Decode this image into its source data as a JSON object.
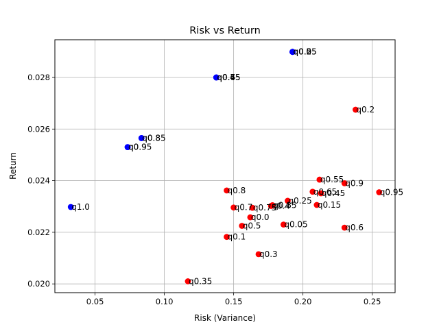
{
  "chart_data": {
    "type": "scatter",
    "title": "Risk vs Return",
    "xlabel": "Risk (Variance)",
    "ylabel": "Return",
    "xlim": [
      0.021,
      0.2665
    ],
    "ylim": [
      0.01966,
      0.02946
    ],
    "grid": true,
    "xticks": [
      0.05,
      0.1,
      0.15,
      0.2,
      0.25
    ],
    "xtick_labels": [
      "0.05",
      "0.10",
      "0.15",
      "0.20",
      "0.25"
    ],
    "yticks": [
      0.02,
      0.022,
      0.024,
      0.026,
      0.028
    ],
    "ytick_labels": [
      "0.020",
      "0.022",
      "0.024",
      "0.026",
      "0.028"
    ],
    "series": [
      {
        "name": "red",
        "color": "#ff0000",
        "points": [
          {
            "label": "q0.0",
            "x": 0.162,
            "y": 0.02258
          },
          {
            "label": "q0.05",
            "x": 0.186,
            "y": 0.0223
          },
          {
            "label": "q0.1",
            "x": 0.145,
            "y": 0.02182
          },
          {
            "label": "q0.15",
            "x": 0.21,
            "y": 0.02306
          },
          {
            "label": "q0.2",
            "x": 0.238,
            "y": 0.02675
          },
          {
            "label": "q0.25",
            "x": 0.189,
            "y": 0.02322
          },
          {
            "label": "q0.3",
            "x": 0.168,
            "y": 0.02115
          },
          {
            "label": "q0.35",
            "x": 0.117,
            "y": 0.0201
          },
          {
            "label": "q0.4",
            "x": 0.177,
            "y": 0.02302
          },
          {
            "label": "q0.45",
            "x": 0.213,
            "y": 0.02351
          },
          {
            "label": "q0.5",
            "x": 0.156,
            "y": 0.02225
          },
          {
            "label": "q0.55",
            "x": 0.212,
            "y": 0.02404
          },
          {
            "label": "q0.6",
            "x": 0.23,
            "y": 0.02218
          },
          {
            "label": "q0.65",
            "x": 0.207,
            "y": 0.02357
          },
          {
            "label": "q0.7",
            "x": 0.15,
            "y": 0.02296
          },
          {
            "label": "q0.75",
            "x": 0.1635,
            "y": 0.02295
          },
          {
            "label": "q0.8",
            "x": 0.145,
            "y": 0.02362
          },
          {
            "label": "q0.85",
            "x": 0.178,
            "y": 0.02305
          },
          {
            "label": "q0.9",
            "x": 0.23,
            "y": 0.0239
          },
          {
            "label": "q0.95",
            "x": 0.255,
            "y": 0.02355
          }
        ]
      },
      {
        "name": "blue",
        "color": "#0000ff",
        "points": [
          {
            "label": "q0.0",
            "x": 0.1925,
            "y": 0.02899
          },
          {
            "label": "q0.25",
            "x": 0.1925,
            "y": 0.02899
          },
          {
            "label": "q0.5",
            "x": 0.1925,
            "y": 0.02899
          },
          {
            "label": "q0.05",
            "x": 0.1925,
            "y": 0.02899
          },
          {
            "label": "q0.45",
            "x": 0.1375,
            "y": 0.028
          },
          {
            "label": "q0.75",
            "x": 0.1375,
            "y": 0.028
          },
          {
            "label": "q0.6",
            "x": 0.1375,
            "y": 0.028
          },
          {
            "label": "q0.8",
            "x": 0.0835,
            "y": 0.02565
          },
          {
            "label": "q0.85",
            "x": 0.0835,
            "y": 0.02565
          },
          {
            "label": "q0.9",
            "x": 0.0735,
            "y": 0.0253
          },
          {
            "label": "q0.95",
            "x": 0.0735,
            "y": 0.0253
          },
          {
            "label": "q1.0",
            "x": 0.0325,
            "y": 0.02298
          }
        ]
      }
    ]
  }
}
